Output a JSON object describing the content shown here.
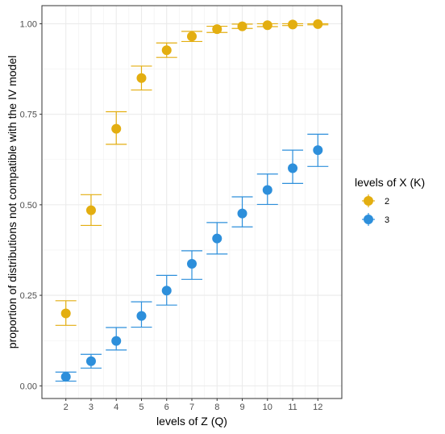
{
  "chart_data": {
    "type": "scatter",
    "xlabel": "levels of Z (Q)",
    "ylabel": "proportion of distributions not compatible with the IV model",
    "x": [
      2,
      3,
      4,
      5,
      6,
      7,
      8,
      9,
      10,
      11,
      12
    ],
    "xlim": [
      1.05,
      12.95
    ],
    "ylim": [
      -0.035,
      1.05
    ],
    "xticks": [
      "2",
      "3",
      "4",
      "5",
      "6",
      "7",
      "8",
      "9",
      "10",
      "11",
      "12"
    ],
    "yticks": [
      "0.00",
      "0.25",
      "0.50",
      "0.75",
      "1.00"
    ],
    "grid": true,
    "error_bars": true,
    "legend": {
      "title": "levels of X (K)",
      "position": "right"
    },
    "series": [
      {
        "name": "2",
        "color": "#E3AE10",
        "values": [
          0.2,
          0.485,
          0.71,
          0.85,
          0.927,
          0.965,
          0.985,
          0.993,
          0.996,
          0.998,
          0.999
        ],
        "lower": [
          0.167,
          0.443,
          0.667,
          0.817,
          0.907,
          0.951,
          0.976,
          0.987,
          0.992,
          0.995,
          0.997
        ],
        "upper": [
          0.235,
          0.528,
          0.757,
          0.883,
          0.947,
          0.979,
          0.993,
          0.999,
          1.0,
          1.0,
          1.0
        ]
      },
      {
        "name": "3",
        "color": "#2D8FDB",
        "values": [
          0.025,
          0.068,
          0.124,
          0.193,
          0.263,
          0.337,
          0.407,
          0.476,
          0.541,
          0.601,
          0.651
        ],
        "lower": [
          0.013,
          0.049,
          0.099,
          0.162,
          0.223,
          0.294,
          0.364,
          0.439,
          0.501,
          0.559,
          0.606
        ],
        "upper": [
          0.038,
          0.087,
          0.161,
          0.232,
          0.305,
          0.373,
          0.451,
          0.522,
          0.585,
          0.651,
          0.695
        ]
      }
    ]
  }
}
